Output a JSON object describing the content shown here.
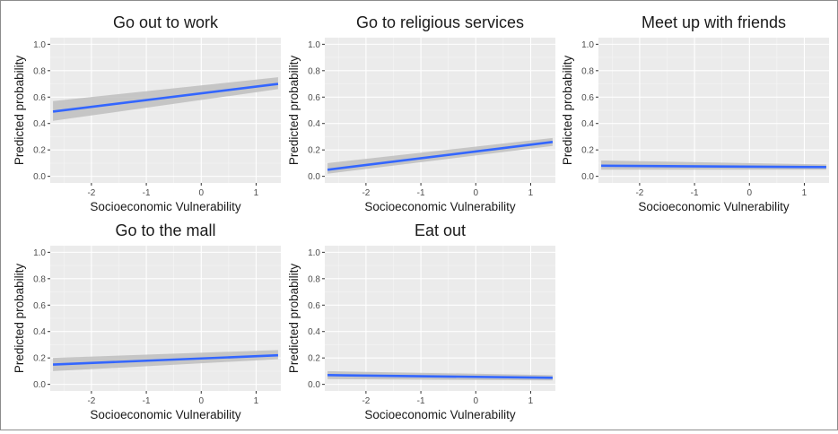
{
  "chart_data": [
    {
      "type": "line",
      "title": "Go out to work",
      "xlabel": "Socioeconomic Vulnerability",
      "ylabel": "Predicted probability",
      "xlim": [
        -2.75,
        1.45
      ],
      "ylim": [
        -0.05,
        1.05
      ],
      "xticks": [
        -2,
        -1,
        0,
        1
      ],
      "xtick_labels": [
        "-2",
        "-1",
        "0",
        "1"
      ],
      "yticks": [
        0.0,
        0.2,
        0.4,
        0.6,
        0.8,
        1.0
      ],
      "ytick_labels": [
        "0.0",
        "0.2",
        "0.4",
        "0.6",
        "0.8",
        "1.0"
      ],
      "grid": true,
      "series": [
        {
          "x": [
            -2.7,
            1.4
          ],
          "y": [
            0.49,
            0.7
          ],
          "ci_lower": [
            0.42,
            0.66
          ],
          "ci_upper": [
            0.57,
            0.75
          ],
          "color": "#3366FF",
          "band_color": "#BEBEBE"
        }
      ]
    },
    {
      "type": "line",
      "title": "Go to religious services",
      "xlabel": "Socioeconomic Vulnerability",
      "ylabel": "Predicted probability",
      "xlim": [
        -2.75,
        1.45
      ],
      "ylim": [
        -0.05,
        1.05
      ],
      "xticks": [
        -2,
        -1,
        0,
        1
      ],
      "xtick_labels": [
        "-2",
        "-1",
        "0",
        "1"
      ],
      "yticks": [
        0.0,
        0.2,
        0.4,
        0.6,
        0.8,
        1.0
      ],
      "ytick_labels": [
        "0.0",
        "0.2",
        "0.4",
        "0.6",
        "0.8",
        "1.0"
      ],
      "grid": true,
      "series": [
        {
          "x": [
            -2.7,
            1.4
          ],
          "y": [
            0.05,
            0.26
          ],
          "ci_lower": [
            0.02,
            0.23
          ],
          "ci_upper": [
            0.1,
            0.29
          ],
          "color": "#3366FF",
          "band_color": "#BEBEBE"
        }
      ]
    },
    {
      "type": "line",
      "title": "Meet up with friends",
      "xlabel": "Socioeconomic Vulnerability",
      "ylabel": "Predicted probability",
      "xlim": [
        -2.75,
        1.45
      ],
      "ylim": [
        -0.05,
        1.05
      ],
      "xticks": [
        -2,
        -1,
        0,
        1
      ],
      "xtick_labels": [
        "-2",
        "-1",
        "0",
        "1"
      ],
      "yticks": [
        0.0,
        0.2,
        0.4,
        0.6,
        0.8,
        1.0
      ],
      "ytick_labels": [
        "0.0",
        "0.2",
        "0.4",
        "0.6",
        "0.8",
        "1.0"
      ],
      "grid": true,
      "series": [
        {
          "x": [
            -2.7,
            1.4
          ],
          "y": [
            0.08,
            0.07
          ],
          "ci_lower": [
            0.05,
            0.05
          ],
          "ci_upper": [
            0.12,
            0.09
          ],
          "color": "#3366FF",
          "band_color": "#BEBEBE"
        }
      ]
    },
    {
      "type": "line",
      "title": "Go to the mall",
      "xlabel": "Socioeconomic Vulnerability",
      "ylabel": "Predicted probability",
      "xlim": [
        -2.75,
        1.45
      ],
      "ylim": [
        -0.05,
        1.05
      ],
      "xticks": [
        -2,
        -1,
        0,
        1
      ],
      "xtick_labels": [
        "-2",
        "-1",
        "0",
        "1"
      ],
      "yticks": [
        0.0,
        0.2,
        0.4,
        0.6,
        0.8,
        1.0
      ],
      "ytick_labels": [
        "0.0",
        "0.2",
        "0.4",
        "0.6",
        "0.8",
        "1.0"
      ],
      "grid": true,
      "series": [
        {
          "x": [
            -2.7,
            1.4
          ],
          "y": [
            0.15,
            0.22
          ],
          "ci_lower": [
            0.1,
            0.19
          ],
          "ci_upper": [
            0.2,
            0.26
          ],
          "color": "#3366FF",
          "band_color": "#BEBEBE"
        }
      ]
    },
    {
      "type": "line",
      "title": "Eat out",
      "xlabel": "Socioeconomic Vulnerability",
      "ylabel": "Predicted probability",
      "xlim": [
        -2.75,
        1.45
      ],
      "ylim": [
        -0.05,
        1.05
      ],
      "xticks": [
        -2,
        -1,
        0,
        1
      ],
      "xtick_labels": [
        "-2",
        "-1",
        "0",
        "1"
      ],
      "yticks": [
        0.0,
        0.2,
        0.4,
        0.6,
        0.8,
        1.0
      ],
      "ytick_labels": [
        "0.0",
        "0.2",
        "0.4",
        "0.6",
        "0.8",
        "1.0"
      ],
      "grid": true,
      "series": [
        {
          "x": [
            -2.7,
            1.4
          ],
          "y": [
            0.07,
            0.05
          ],
          "ci_lower": [
            0.04,
            0.03
          ],
          "ci_upper": [
            0.1,
            0.07
          ],
          "color": "#3366FF",
          "band_color": "#BEBEBE"
        }
      ]
    }
  ],
  "style": {
    "panel_background": "#EBEBEB",
    "grid_major": "#FFFFFF",
    "grid_minor": "#F5F5F5",
    "text_color": "#1A1A1A",
    "tick_color": "#4D4D4D"
  }
}
